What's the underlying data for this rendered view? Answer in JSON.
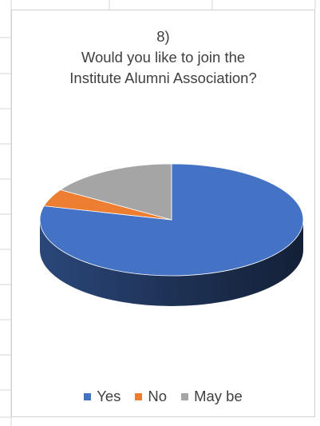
{
  "chart_data": {
    "type": "pie",
    "style": "3d",
    "title": [
      "8)",
      "Would you like to join the",
      "Institute Alumni Association?"
    ],
    "legend_position": "bottom",
    "series": [
      {
        "name": "Yes",
        "value": 79,
        "color": "#4472C4"
      },
      {
        "name": "No",
        "value": 5,
        "color": "#ED7D31"
      },
      {
        "name": "May be",
        "value": 16,
        "color": "#A5A5A5"
      }
    ]
  }
}
